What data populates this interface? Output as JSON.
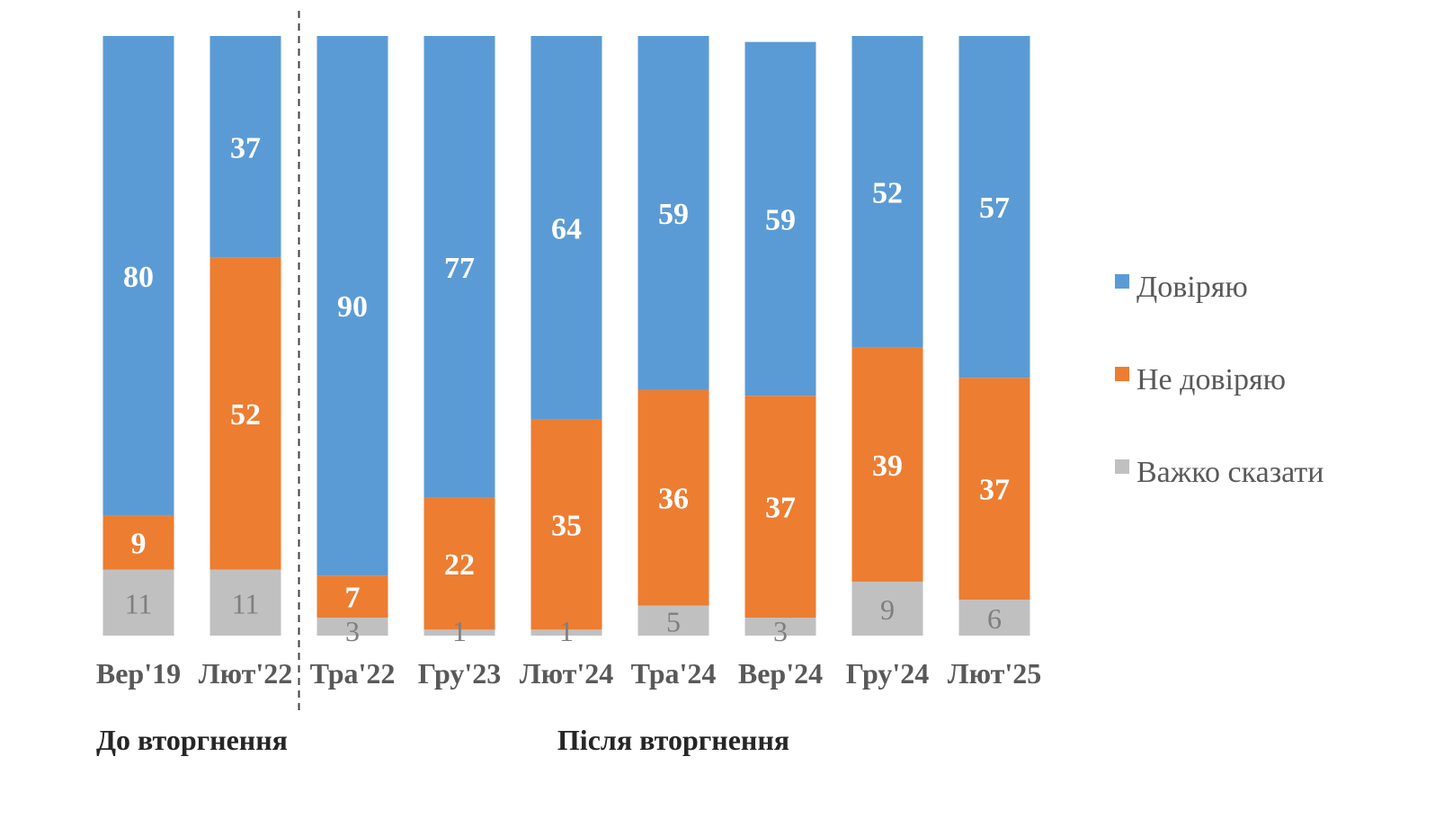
{
  "chart_data": {
    "type": "bar",
    "stacked": true,
    "categories": [
      "Вер'19",
      "Лют'22",
      "Тра'22",
      "Гру'23",
      "Лют'24",
      "Тра'24",
      "Вер'24",
      "Гру'24",
      "Лют'25"
    ],
    "series": [
      {
        "name": "Важко сказати",
        "color": "#c0c0c0",
        "values": [
          11,
          11,
          3,
          1,
          1,
          5,
          3,
          9,
          6
        ]
      },
      {
        "name": "Не довіряю",
        "color": "#ed7d31",
        "values": [
          9,
          52,
          7,
          22,
          35,
          36,
          37,
          39,
          37
        ]
      },
      {
        "name": "Довіряю",
        "color": "#5b9bd5",
        "values": [
          80,
          37,
          90,
          77,
          64,
          59,
          59,
          52,
          57
        ]
      }
    ],
    "ylim": [
      0,
      100
    ],
    "legend_order": [
      "Довіряю",
      "Не довіряю",
      "Важко сказати"
    ],
    "legend_position": "right",
    "grid": false,
    "divider_after_category_index": 1,
    "periods": [
      "До вторгнення",
      "Після вторгнення"
    ]
  }
}
